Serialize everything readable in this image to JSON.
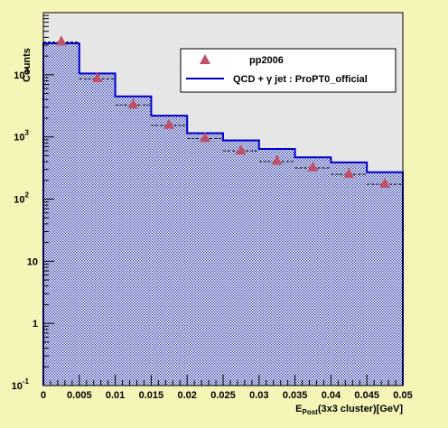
{
  "chart_data": {
    "type": "bar",
    "title": "",
    "ylabel": "Counts",
    "xlabel_main": "E",
    "xlabel_sub": "Post",
    "xlabel_rest": "(3x3 cluster)[GeV]",
    "xlim": [
      0,
      0.05
    ],
    "ylim_log10": [
      -1,
      5
    ],
    "y_scale": "log",
    "grid": false,
    "legend_position": "top-right",
    "x_ticks": [
      "0",
      "0.005",
      "0.01",
      "0.015",
      "0.02",
      "0.025",
      "0.03",
      "0.035",
      "0.04",
      "0.045",
      "0.05"
    ],
    "y_ticks": [
      {
        "base": "10",
        "exp": "-1"
      },
      {
        "base": "1",
        "exp": ""
      },
      {
        "base": "10",
        "exp": ""
      },
      {
        "base": "10",
        "exp": "2"
      },
      {
        "base": "10",
        "exp": "3"
      },
      {
        "base": "10",
        "exp": "4"
      }
    ],
    "bin_edges": [
      0,
      0.005,
      0.01,
      0.015,
      0.02,
      0.025,
      0.03,
      0.035,
      0.04,
      0.045,
      0.05
    ],
    "series": [
      {
        "name": "QCD + γ jet : ProPT0_official",
        "kind": "histogram",
        "color": "#0000cc",
        "values": [
          32000,
          10500,
          4500,
          2200,
          1150,
          880,
          640,
          470,
          390,
          270
        ]
      },
      {
        "name": "pp2006",
        "kind": "points",
        "color": "#c0506a",
        "x": [
          0.0025,
          0.0075,
          0.0125,
          0.0175,
          0.0225,
          0.0275,
          0.0325,
          0.0375,
          0.0425,
          0.0475
        ],
        "values": [
          35000,
          9000,
          3400,
          1600,
          980,
          620,
          420,
          330,
          260,
          180
        ]
      }
    ]
  },
  "colors": {
    "page_background": "#f5f5b8",
    "plot_background": "#e6e6e6",
    "hist_fill_dots": "#2a3aa8"
  }
}
